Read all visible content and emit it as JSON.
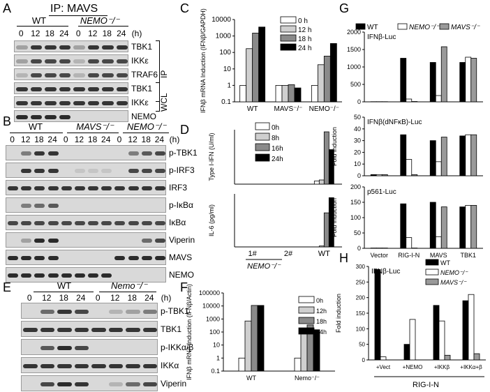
{
  "panels": {
    "A": {
      "label": "A",
      "title": "IP: MAVS",
      "groups": [
        "WT",
        "NEMO⁻/⁻"
      ],
      "times": [
        "0",
        "12",
        "18",
        "24",
        "0",
        "12",
        "18",
        "24"
      ],
      "time_unit": "(h)",
      "rows": [
        "TBK1",
        "IKKε",
        "TRAF6",
        "TBK1",
        "IKKε",
        "NEMO"
      ],
      "brackets": [
        "IP",
        "WCL"
      ]
    },
    "B": {
      "label": "B",
      "groups": [
        "WT",
        "MAVS⁻/⁻",
        "NEMO⁻/⁻"
      ],
      "times": [
        "0",
        "12",
        "18",
        "24",
        "0",
        "12",
        "18",
        "24",
        "0",
        "12",
        "18",
        "24"
      ],
      "time_unit": "(h)",
      "rows": [
        "p-TBK1",
        "p-IRF3",
        "IRF3",
        "p-IκBα",
        "IκBα",
        "Viperin",
        "MAVS",
        "NEMO"
      ]
    },
    "E": {
      "label": "E",
      "groups": [
        "WT",
        "Nemo⁻/⁻"
      ],
      "times": [
        "0",
        "12",
        "18",
        "24",
        "0",
        "12",
        "18",
        "24"
      ],
      "time_unit": "(h)",
      "rows": [
        "p-TBK1",
        "TBK1",
        "p-IKKα/β",
        "IKKα",
        "Viperin"
      ]
    },
    "C": {
      "label": "C"
    },
    "D": {
      "label": "D"
    },
    "F": {
      "label": "F"
    },
    "G": {
      "label": "G"
    },
    "H": {
      "label": "H"
    }
  },
  "chart_data": [
    {
      "id": "C",
      "type": "bar",
      "ylabel": "IFNβ mRNA Induction (IFNβ/GAPDH)",
      "yscale": "log",
      "ylim": [
        0.1,
        10000
      ],
      "yticks": [
        "0.1",
        "1",
        "10",
        "100",
        "1000",
        "10000"
      ],
      "categories": [
        "WT",
        "MAVS⁻/⁻",
        "NEMO⁻/⁻"
      ],
      "legend": [
        "0 h",
        "12 h",
        "18 h",
        "24 h"
      ],
      "colors": [
        "#ffffff",
        "#cfcfcf",
        "#8a8a8a",
        "#000000"
      ],
      "series": [
        {
          "name": "0 h",
          "values": [
            1,
            1,
            1
          ]
        },
        {
          "name": "12 h",
          "values": [
            170,
            1,
            18
          ]
        },
        {
          "name": "18 h",
          "values": [
            1500,
            1.1,
            60
          ]
        },
        {
          "name": "24 h",
          "values": [
            3500,
            0.7,
            350
          ]
        }
      ]
    },
    {
      "id": "D1",
      "type": "bar",
      "ylabel": "Type I-IFN (U/ml)",
      "categories": [
        "1#",
        "2#",
        "WT"
      ],
      "legend": [
        "0h",
        "8h",
        "16h",
        "24h"
      ],
      "colors": [
        "#ffffff",
        "#cfcfcf",
        "#8a8a8a",
        "#000000"
      ],
      "ylim": [
        0,
        260
      ],
      "series": [
        {
          "name": "0h",
          "values": [
            0,
            0,
            15
          ]
        },
        {
          "name": "8h",
          "values": [
            0,
            0,
            20
          ]
        },
        {
          "name": "16h",
          "values": [
            0,
            0,
            250
          ]
        },
        {
          "name": "24h",
          "values": [
            0,
            0,
            165
          ]
        }
      ]
    },
    {
      "id": "D2",
      "type": "bar",
      "ylabel": "IL-6 (pg/ml)",
      "categories": [
        "1#",
        "2#",
        "WT"
      ],
      "xgroup_label": "NEMO⁻/⁻",
      "colors": [
        "#ffffff",
        "#cfcfcf",
        "#8a8a8a",
        "#000000"
      ],
      "ylim": [
        0,
        280
      ],
      "series": [
        {
          "name": "0h",
          "values": [
            0,
            0,
            0
          ]
        },
        {
          "name": "8h",
          "values": [
            0,
            0,
            5
          ]
        },
        {
          "name": "16h",
          "values": [
            0,
            0,
            180
          ]
        },
        {
          "name": "24h",
          "values": [
            0,
            0,
            260
          ]
        }
      ]
    },
    {
      "id": "F",
      "type": "bar",
      "ylabel": "IFNβ mRNA Induction (IFNβ/Actin)",
      "yscale": "log",
      "ylim": [
        0.1,
        100000
      ],
      "yticks": [
        "0.1",
        "1",
        "10",
        "100",
        "1000",
        "10000",
        "100000"
      ],
      "categories": [
        "WT",
        "Nemo⁻/⁻"
      ],
      "legend": [
        "0h",
        "12h",
        "18h",
        "24h"
      ],
      "colors": [
        "#ffffff",
        "#cfcfcf",
        "#8a8a8a",
        "#000000"
      ],
      "series": [
        {
          "name": "0h",
          "values": [
            1,
            1
          ]
        },
        {
          "name": "12h",
          "values": [
            700,
            150
          ]
        },
        {
          "name": "18h",
          "values": [
            11000,
            350
          ]
        },
        {
          "name": "24h",
          "values": [
            11000,
            150
          ]
        }
      ]
    },
    {
      "id": "G1",
      "type": "bar",
      "title": "IFNβ-Luc",
      "ylabel": "Fold induction",
      "legend": [
        "WT",
        "NEMO⁻/⁻",
        "MAVS⁻/⁻"
      ],
      "colors": [
        "#000000",
        "#ffffff",
        "#9a9a9a"
      ],
      "categories": [
        "Vector",
        "RIG-I-N",
        "MAVS",
        "TBK1"
      ],
      "ylim": [
        0,
        2000
      ],
      "yticks": [
        "0",
        "500",
        "1000",
        "1500",
        "2000"
      ],
      "series": [
        {
          "name": "WT",
          "values": [
            5,
            1250,
            1130,
            1130
          ]
        },
        {
          "name": "NEMO⁻/⁻",
          "values": [
            5,
            80,
            180,
            1280
          ]
        },
        {
          "name": "MAVS⁻/⁻",
          "values": [
            5,
            10,
            1580,
            1250
          ]
        }
      ]
    },
    {
      "id": "G2",
      "type": "bar",
      "title": "IFNβ(dNFκB)-Luc",
      "ylabel": "Fold induction",
      "categories": [
        "Vector",
        "RIG-I-N",
        "MAVS",
        "TBK1"
      ],
      "colors": [
        "#000000",
        "#ffffff",
        "#9a9a9a"
      ],
      "ylim": [
        0,
        50
      ],
      "yticks": [
        "0",
        "10",
        "20",
        "30",
        "40",
        "50"
      ],
      "series": [
        {
          "name": "WT",
          "values": [
            1,
            35,
            30,
            34
          ]
        },
        {
          "name": "NEMO⁻/⁻",
          "values": [
            1,
            14,
            12,
            35
          ]
        },
        {
          "name": "MAVS⁻/⁻",
          "values": [
            1,
            1,
            33,
            35
          ]
        }
      ]
    },
    {
      "id": "G3",
      "type": "bar",
      "title": "p561-Luc",
      "ylabel": "Fold induction",
      "categories": [
        "Vector",
        "RIG-I-N",
        "MAVS",
        "TBK1"
      ],
      "colors": [
        "#000000",
        "#ffffff",
        "#9a9a9a"
      ],
      "ylim": [
        0,
        200
      ],
      "yticks": [
        "0",
        "50",
        "100",
        "150",
        "200"
      ],
      "series": [
        {
          "name": "WT",
          "values": [
            1,
            145,
            150,
            135
          ]
        },
        {
          "name": "NEMO⁻/⁻",
          "values": [
            1,
            35,
            38,
            140
          ]
        },
        {
          "name": "MAVS⁻/⁻",
          "values": [
            1,
            1,
            135,
            140
          ]
        }
      ]
    },
    {
      "id": "H",
      "type": "bar",
      "title": "IFNβ-Luc",
      "ylabel": "Fold induction",
      "legend": [
        "WT",
        "NEMO⁻/⁻",
        "MAVS⁻/⁻"
      ],
      "colors": [
        "#000000",
        "#ffffff",
        "#9a9a9a"
      ],
      "categories": [
        "+Vect",
        "+NEMO",
        "+IKKβ",
        "+IKKα+β"
      ],
      "xgroup_label": "RIG-I-N",
      "ylim": [
        0,
        300
      ],
      "yticks": [
        "0",
        "50",
        "100",
        "150",
        "200",
        "250",
        "300"
      ],
      "series": [
        {
          "name": "WT",
          "values": [
            290,
            50,
            175,
            190
          ]
        },
        {
          "name": "NEMO⁻/⁻",
          "values": [
            10,
            130,
            125,
            210
          ]
        },
        {
          "name": "MAVS⁻/⁻",
          "values": [
            0,
            0,
            15,
            20
          ]
        }
      ]
    }
  ]
}
